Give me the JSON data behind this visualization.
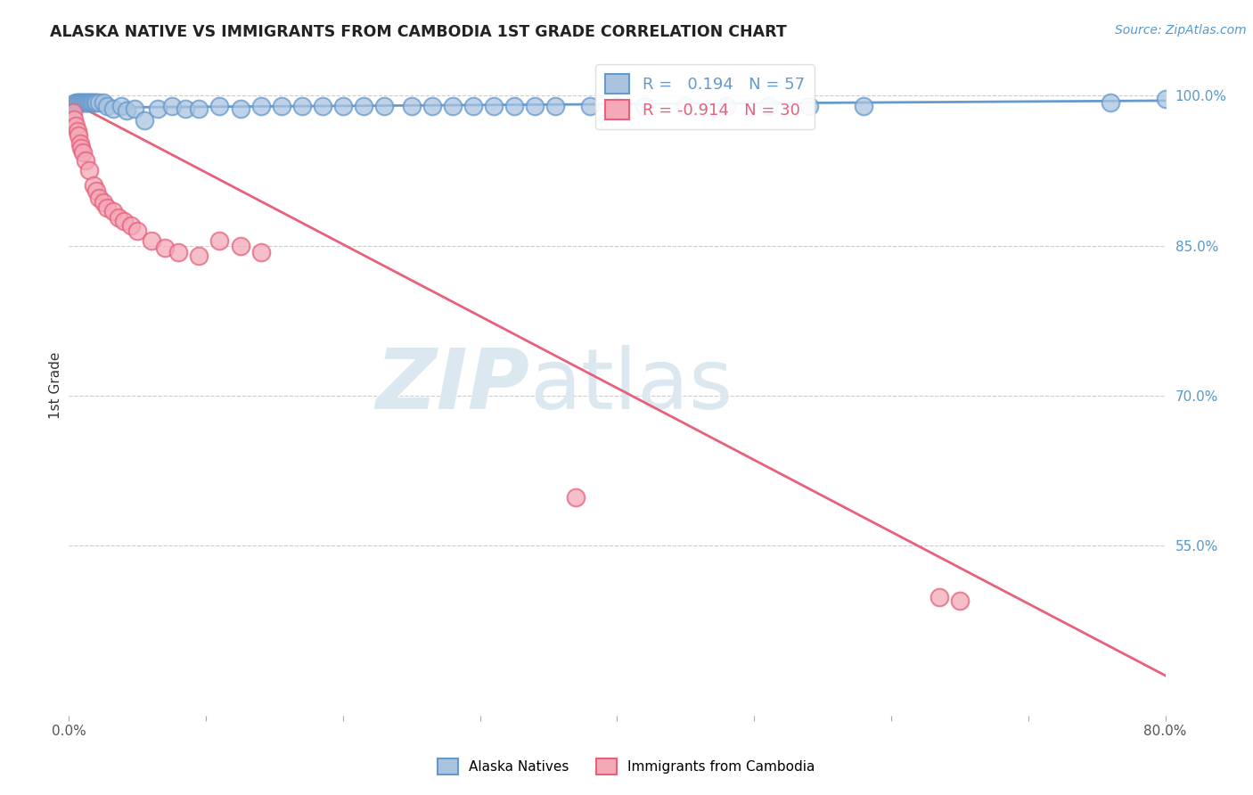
{
  "title": "ALASKA NATIVE VS IMMIGRANTS FROM CAMBODIA 1ST GRADE CORRELATION CHART",
  "source_text": "Source: ZipAtlas.com",
  "ylabel": "1st Grade",
  "xlim": [
    0.0,
    0.8
  ],
  "ylim": [
    0.38,
    1.04
  ],
  "x_ticks": [
    0.0,
    0.1,
    0.2,
    0.3,
    0.4,
    0.5,
    0.6,
    0.7,
    0.8
  ],
  "x_tick_labels": [
    "0.0%",
    "",
    "",
    "",
    "",
    "",
    "",
    "",
    "80.0%"
  ],
  "y_tick_labels_right": [
    "100.0%",
    "85.0%",
    "70.0%",
    "55.0%"
  ],
  "y_tick_vals_right": [
    1.0,
    0.85,
    0.7,
    0.55
  ],
  "grid_color": "#cccccc",
  "blue_color": "#6699cc",
  "pink_color": "#e8607a",
  "blue_fill": "#aac4e0",
  "pink_fill": "#f4a8b8",
  "R_blue": 0.194,
  "N_blue": 57,
  "R_pink": -0.914,
  "N_pink": 30,
  "watermark_color": "#dce8f0",
  "legend_label_blue": "Alaska Natives",
  "legend_label_pink": "Immigrants from Cambodia",
  "blue_x": [
    0.003,
    0.004,
    0.005,
    0.006,
    0.007,
    0.008,
    0.009,
    0.01,
    0.011,
    0.012,
    0.013,
    0.014,
    0.015,
    0.016,
    0.017,
    0.018,
    0.019,
    0.02,
    0.022,
    0.025,
    0.028,
    0.032,
    0.038,
    0.042,
    0.048,
    0.055,
    0.065,
    0.075,
    0.085,
    0.095,
    0.11,
    0.125,
    0.14,
    0.155,
    0.17,
    0.185,
    0.2,
    0.215,
    0.23,
    0.25,
    0.265,
    0.28,
    0.295,
    0.31,
    0.325,
    0.34,
    0.355,
    0.38,
    0.4,
    0.42,
    0.45,
    0.48,
    0.51,
    0.54,
    0.58,
    0.76,
    0.8
  ],
  "blue_y": [
    0.99,
    0.992,
    0.993,
    0.993,
    0.993,
    0.993,
    0.993,
    0.993,
    0.993,
    0.993,
    0.993,
    0.993,
    0.993,
    0.993,
    0.993,
    0.993,
    0.993,
    0.993,
    0.993,
    0.993,
    0.99,
    0.987,
    0.99,
    0.985,
    0.987,
    0.975,
    0.987,
    0.99,
    0.987,
    0.987,
    0.99,
    0.987,
    0.99,
    0.99,
    0.99,
    0.99,
    0.99,
    0.99,
    0.99,
    0.99,
    0.99,
    0.99,
    0.99,
    0.99,
    0.99,
    0.99,
    0.99,
    0.99,
    0.99,
    0.99,
    0.99,
    0.99,
    0.99,
    0.99,
    0.99,
    0.993,
    0.997
  ],
  "pink_x": [
    0.003,
    0.004,
    0.005,
    0.006,
    0.007,
    0.008,
    0.009,
    0.01,
    0.012,
    0.015,
    0.018,
    0.02,
    0.022,
    0.025,
    0.028,
    0.032,
    0.036,
    0.04,
    0.045,
    0.05,
    0.06,
    0.07,
    0.08,
    0.095,
    0.11,
    0.125,
    0.14,
    0.37,
    0.635,
    0.65
  ],
  "pink_y": [
    0.983,
    0.976,
    0.97,
    0.965,
    0.96,
    0.952,
    0.948,
    0.943,
    0.935,
    0.925,
    0.91,
    0.905,
    0.898,
    0.893,
    0.888,
    0.884,
    0.878,
    0.875,
    0.87,
    0.865,
    0.855,
    0.848,
    0.843,
    0.84,
    0.855,
    0.85,
    0.843,
    0.598,
    0.498,
    0.495
  ],
  "blue_trend_x": [
    0.0,
    0.8
  ],
  "blue_trend_y": [
    0.988,
    0.995
  ],
  "pink_trend_x": [
    0.0,
    0.8
  ],
  "pink_trend_y": [
    0.995,
    0.42
  ]
}
